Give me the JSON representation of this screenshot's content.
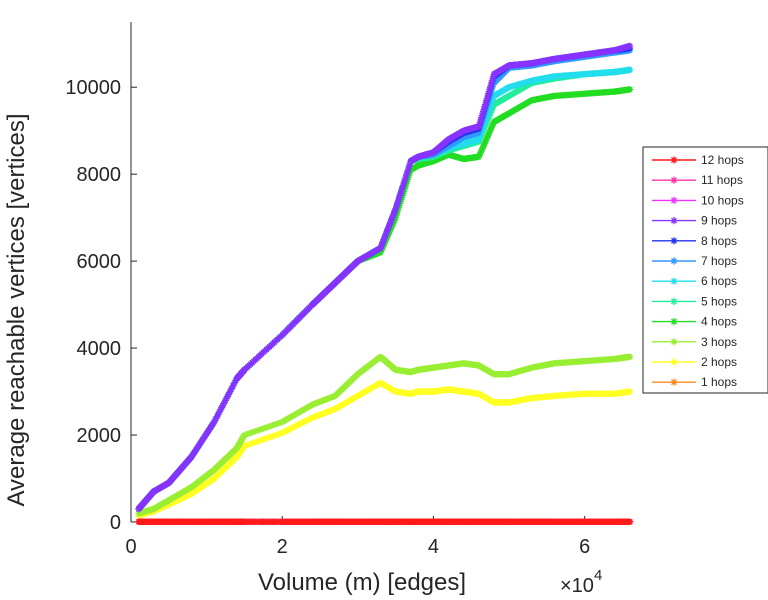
{
  "chart_data": {
    "type": "line",
    "title": "",
    "xlabel": "Volume (m) [edges]",
    "ylabel": "Average reachable vertices [vertices]",
    "x_multiplier_label": "×10",
    "x_multiplier_exponent": "4",
    "xlim": [
      0,
      6.6
    ],
    "ylim": [
      0,
      11500
    ],
    "xticks": [
      0,
      2,
      4,
      6
    ],
    "xtick_labels": [
      "0",
      "2",
      "4",
      "6"
    ],
    "yticks": [
      0,
      2000,
      4000,
      6000,
      8000,
      10000
    ],
    "ytick_labels": [
      "0",
      "2000",
      "4000",
      "6000",
      "8000",
      "10000"
    ],
    "grid": false,
    "legend_position": "right",
    "x": [
      0.1,
      0.3,
      0.5,
      0.8,
      1.1,
      1.4,
      1.5,
      2.0,
      2.4,
      2.7,
      3.0,
      3.3,
      3.5,
      3.7,
      3.8,
      4.0,
      4.2,
      4.4,
      4.6,
      4.8,
      5.0,
      5.3,
      5.6,
      6.0,
      6.4,
      6.6
    ],
    "series": [
      {
        "name": "12 hops",
        "color": "#ff1a1a",
        "values": [
          5,
          5,
          5,
          5,
          5,
          5,
          5,
          5,
          5,
          5,
          5,
          5,
          5,
          5,
          5,
          5,
          5,
          5,
          5,
          5,
          5,
          5,
          5,
          5,
          5,
          5
        ]
      },
      {
        "name": "11 hops",
        "color": "#ff33aa",
        "values": [
          5,
          5,
          5,
          5,
          5,
          5,
          5,
          5,
          5,
          5,
          5,
          5,
          5,
          5,
          5,
          5,
          5,
          5,
          5,
          5,
          5,
          5,
          5,
          5,
          5,
          5
        ]
      },
      {
        "name": "10 hops",
        "color": "#ee33ff",
        "values": [
          5,
          5,
          5,
          5,
          5,
          5,
          5,
          5,
          5,
          5,
          5,
          5,
          5,
          5,
          5,
          5,
          5,
          5,
          5,
          5,
          5,
          5,
          5,
          5,
          5,
          5
        ]
      },
      {
        "name": "9 hops",
        "color": "#8833ff",
        "values": [
          300,
          700,
          900,
          1500,
          2300,
          3300,
          3500,
          4300,
          5000,
          5500,
          6000,
          6300,
          7200,
          8300,
          8400,
          8500,
          8800,
          9000,
          9100,
          10300,
          10500,
          10550,
          10650,
          10750,
          10850,
          10950
        ]
      },
      {
        "name": "8 hops",
        "color": "#2233ee",
        "values": [
          300,
          700,
          900,
          1500,
          2300,
          3300,
          3500,
          4300,
          5000,
          5500,
          6000,
          6300,
          7200,
          8300,
          8400,
          8500,
          8750,
          8950,
          9050,
          10250,
          10500,
          10550,
          10650,
          10750,
          10850,
          10900
        ]
      },
      {
        "name": "7 hops",
        "color": "#3399ff",
        "values": [
          300,
          700,
          900,
          1500,
          2300,
          3300,
          3500,
          4300,
          5000,
          5500,
          6000,
          6300,
          7200,
          8300,
          8400,
          8450,
          8650,
          8850,
          8950,
          10100,
          10450,
          10500,
          10600,
          10700,
          10800,
          10850
        ]
      },
      {
        "name": "6 hops",
        "color": "#22ddee",
        "values": [
          300,
          700,
          900,
          1500,
          2300,
          3300,
          3500,
          4300,
          5000,
          5500,
          6000,
          6300,
          7200,
          8300,
          8400,
          8450,
          8600,
          8700,
          8800,
          9800,
          10000,
          10150,
          10250,
          10300,
          10350,
          10400
        ]
      },
      {
        "name": "5 hops",
        "color": "#22ee99",
        "values": [
          300,
          700,
          900,
          1500,
          2300,
          3300,
          3500,
          4300,
          5000,
          5500,
          6000,
          6300,
          7200,
          8300,
          8350,
          8400,
          8550,
          8650,
          8750,
          9600,
          9800,
          10100,
          10200,
          10300,
          10350,
          10400
        ]
      },
      {
        "name": "4 hops",
        "color": "#22dd22",
        "values": [
          300,
          700,
          900,
          1500,
          2300,
          3300,
          3500,
          4300,
          5000,
          5500,
          6000,
          6200,
          7000,
          8100,
          8200,
          8300,
          8450,
          8350,
          8400,
          9200,
          9400,
          9700,
          9800,
          9850,
          9900,
          9950
        ]
      },
      {
        "name": "3 hops",
        "color": "#99ee33",
        "values": [
          200,
          300,
          500,
          800,
          1200,
          1700,
          2000,
          2300,
          2700,
          2900,
          3400,
          3800,
          3500,
          3450,
          3500,
          3550,
          3600,
          3650,
          3600,
          3400,
          3400,
          3550,
          3650,
          3700,
          3750,
          3800
        ]
      },
      {
        "name": "2 hops",
        "color": "#ffff22",
        "values": [
          150,
          250,
          400,
          650,
          1000,
          1500,
          1750,
          2050,
          2400,
          2600,
          2900,
          3200,
          3000,
          2950,
          3000,
          3000,
          3050,
          3000,
          2950,
          2750,
          2750,
          2850,
          2900,
          2950,
          2950,
          3000
        ]
      },
      {
        "name": "1 hops",
        "color": "#ff8822",
        "values": [
          5,
          5,
          5,
          5,
          5,
          5,
          5,
          5,
          5,
          5,
          5,
          5,
          5,
          5,
          5,
          5,
          5,
          5,
          5,
          5,
          5,
          5,
          5,
          5,
          5,
          5
        ]
      }
    ]
  }
}
